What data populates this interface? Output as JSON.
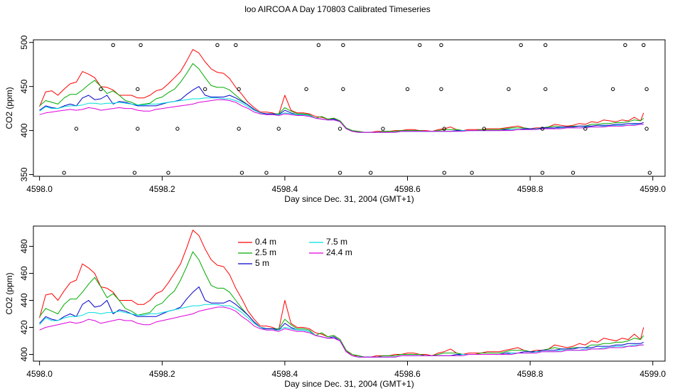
{
  "title": "loo AIRCOA A  Day 170803  Calibrated Timeseries",
  "chart_data": [
    {
      "type": "line",
      "xlabel": "Day since Dec. 31, 2004 (GMT+1)",
      "ylabel": "CO2 (ppm)",
      "xlim": [
        4597.99,
        4599.02
      ],
      "ylim": [
        348,
        503
      ],
      "xticks": [
        "4598.0",
        "4598.2",
        "4598.4",
        "4598.6",
        "4598.8",
        "4599.0"
      ],
      "yticks": [
        "350",
        "400",
        "450",
        "500"
      ],
      "series_ref": "profile",
      "markers": {
        "style": "open-circle",
        "points": [
          [
            4598.04,
            352
          ],
          [
            4598.06,
            402
          ],
          [
            4598.1,
            447
          ],
          [
            4598.12,
            497
          ],
          [
            4598.155,
            352
          ],
          [
            4598.16,
            402
          ],
          [
            4598.16,
            447
          ],
          [
            4598.165,
            497
          ],
          [
            4598.21,
            352
          ],
          [
            4598.225,
            402
          ],
          [
            4598.27,
            447
          ],
          [
            4598.29,
            497
          ],
          [
            4598.32,
            497
          ],
          [
            4598.325,
            447
          ],
          [
            4598.33,
            352
          ],
          [
            4598.325,
            402
          ],
          [
            4598.37,
            352
          ],
          [
            4598.39,
            402
          ],
          [
            4598.435,
            447
          ],
          [
            4598.455,
            497
          ],
          [
            4598.49,
            352
          ],
          [
            4598.49,
            402
          ],
          [
            4598.495,
            447
          ],
          [
            4598.495,
            497
          ],
          [
            4598.54,
            352
          ],
          [
            4598.56,
            402
          ],
          [
            4598.6,
            447
          ],
          [
            4598.62,
            497
          ],
          [
            4598.655,
            497
          ],
          [
            4598.655,
            447
          ],
          [
            4598.66,
            352
          ],
          [
            4598.66,
            402
          ],
          [
            4598.705,
            352
          ],
          [
            4598.725,
            402
          ],
          [
            4598.765,
            447
          ],
          [
            4598.785,
            497
          ],
          [
            4598.82,
            352
          ],
          [
            4598.82,
            402
          ],
          [
            4598.825,
            447
          ],
          [
            4598.825,
            497
          ],
          [
            4598.87,
            352
          ],
          [
            4598.89,
            402
          ],
          [
            4598.935,
            447
          ],
          [
            4598.955,
            497
          ],
          [
            4598.985,
            497
          ],
          [
            4598.99,
            447
          ],
          [
            4598.99,
            402
          ],
          [
            4598.995,
            352
          ]
        ]
      }
    },
    {
      "type": "line",
      "xlabel": "Day since Dec. 31, 2004 (GMT+1)",
      "ylabel": "CO2 (ppm)",
      "xlim": [
        4597.99,
        4599.02
      ],
      "ylim": [
        395,
        495
      ],
      "xticks": [
        "4598.0",
        "4598.2",
        "4598.4",
        "4598.6",
        "4598.8",
        "4599.0"
      ],
      "yticks": [
        "400",
        "420",
        "440",
        "460",
        "480"
      ],
      "series_ref": "profile",
      "legend": {
        "placement": "top-left",
        "entries": [
          {
            "name": "0.4 m",
            "color": "#ff0000"
          },
          {
            "name": "2.5 m",
            "color": "#00aa00"
          },
          {
            "name": "5 m",
            "color": "#0000cc"
          },
          {
            "name": "7.5 m",
            "color": "#00dddd"
          },
          {
            "name": "24.4 m",
            "color": "#dd00dd"
          }
        ]
      }
    }
  ],
  "profile": {
    "x": [
      4598.0,
      4598.01,
      4598.02,
      4598.03,
      4598.04,
      4598.05,
      4598.06,
      4598.07,
      4598.08,
      4598.09,
      4598.1,
      4598.11,
      4598.12,
      4598.13,
      4598.14,
      4598.15,
      4598.16,
      4598.17,
      4598.18,
      4598.19,
      4598.2,
      4598.21,
      4598.22,
      4598.23,
      4598.24,
      4598.25,
      4598.26,
      4598.27,
      4598.28,
      4598.29,
      4598.3,
      4598.31,
      4598.32,
      4598.33,
      4598.34,
      4598.35,
      4598.36,
      4598.37,
      4598.38,
      4598.39,
      4598.4,
      4598.41,
      4598.42,
      4598.43,
      4598.44,
      4598.45,
      4598.46,
      4598.47,
      4598.48,
      4598.49,
      4598.5,
      4598.51,
      4598.52,
      4598.53,
      4598.54,
      4598.55,
      4598.56,
      4598.57,
      4598.58,
      4598.59,
      4598.6,
      4598.61,
      4598.62,
      4598.63,
      4598.64,
      4598.65,
      4598.66,
      4598.67,
      4598.68,
      4598.69,
      4598.7,
      4598.71,
      4598.72,
      4598.73,
      4598.74,
      4598.75,
      4598.76,
      4598.77,
      4598.78,
      4598.79,
      4598.8,
      4598.81,
      4598.82,
      4598.83,
      4598.84,
      4598.85,
      4598.86,
      4598.87,
      4598.88,
      4598.89,
      4598.9,
      4598.91,
      4598.92,
      4598.93,
      4598.94,
      4598.95,
      4598.96,
      4598.97,
      4598.98,
      4598.985
    ],
    "series": [
      {
        "name": "0.4 m",
        "color": "#ff0000",
        "values": [
          427,
          444,
          445,
          440,
          447,
          453,
          455,
          467,
          464,
          460,
          450,
          449,
          446,
          440,
          440,
          440,
          437,
          437,
          440,
          445,
          447,
          453,
          460,
          467,
          479,
          492,
          488,
          478,
          470,
          466,
          465,
          459,
          449,
          441,
          432,
          426,
          421,
          421,
          420,
          418,
          440,
          423,
          420,
          420,
          419,
          416,
          415,
          413,
          414,
          411,
          403,
          399,
          399,
          398,
          398,
          399,
          399,
          399,
          400,
          400,
          401,
          401,
          400,
          400,
          399,
          401,
          402,
          404,
          401,
          400,
          401,
          401,
          401,
          402,
          402,
          402,
          403,
          404,
          405,
          403,
          402,
          403,
          403,
          404,
          407,
          406,
          405,
          406,
          408,
          407,
          410,
          409,
          412,
          411,
          410,
          412,
          411,
          415,
          411,
          420
        ]
      },
      {
        "name": "2.5 m",
        "color": "#00aa00",
        "values": [
          428,
          434,
          432,
          430,
          437,
          441,
          441,
          446,
          452,
          457,
          450,
          442,
          445,
          440,
          434,
          432,
          429,
          430,
          431,
          436,
          438,
          443,
          447,
          455,
          465,
          476,
          470,
          460,
          451,
          449,
          449,
          446,
          440,
          434,
          429,
          424,
          420,
          419,
          419,
          419,
          426,
          422,
          419,
          419,
          418,
          414,
          416,
          413,
          414,
          411,
          403,
          400,
          399,
          398,
          398,
          398,
          399,
          399,
          399,
          400,
          400,
          400,
          400,
          399,
          399,
          400,
          401,
          401,
          401,
          400,
          400,
          400,
          401,
          401,
          401,
          401,
          402,
          403,
          403,
          403,
          402,
          402,
          403,
          404,
          405,
          404,
          404,
          405,
          405,
          405,
          407,
          407,
          408,
          408,
          409,
          409,
          410,
          412,
          411,
          414
        ]
      },
      {
        "name": "5 m",
        "color": "#0000cc",
        "values": [
          423,
          428,
          426,
          425,
          428,
          430,
          428,
          437,
          440,
          435,
          436,
          440,
          430,
          433,
          432,
          430,
          428,
          428,
          428,
          428,
          430,
          432,
          433,
          435,
          441,
          446,
          450,
          440,
          438,
          438,
          438,
          440,
          437,
          433,
          429,
          424,
          420,
          419,
          419,
          418,
          423,
          420,
          418,
          418,
          417,
          414,
          413,
          412,
          413,
          410,
          402,
          399,
          398,
          398,
          398,
          398,
          398,
          398,
          398,
          399,
          399,
          399,
          399,
          399,
          399,
          399,
          399,
          399,
          400,
          400,
          400,
          400,
          400,
          400,
          400,
          400,
          401,
          401,
          401,
          402,
          402,
          402,
          403,
          403,
          403,
          404,
          404,
          404,
          405,
          405,
          405,
          406,
          406,
          406,
          407,
          407,
          408,
          408,
          408,
          409
        ]
      },
      {
        "name": "7.5 m",
        "color": "#00dddd",
        "values": [
          422,
          427,
          425,
          425,
          427,
          428,
          428,
          429,
          431,
          431,
          430,
          431,
          431,
          432,
          431,
          430,
          429,
          429,
          430,
          430,
          431,
          432,
          433,
          434,
          435,
          436,
          436,
          437,
          437,
          437,
          436,
          436,
          434,
          431,
          427,
          423,
          420,
          418,
          418,
          418,
          420,
          419,
          418,
          418,
          417,
          414,
          413,
          412,
          412,
          410,
          402,
          399,
          398,
          398,
          398,
          398,
          398,
          398,
          398,
          399,
          399,
          399,
          399,
          399,
          399,
          399,
          399,
          399,
          399,
          400,
          400,
          400,
          400,
          400,
          400,
          400,
          400,
          401,
          401,
          401,
          401,
          402,
          402,
          402,
          402,
          403,
          403,
          403,
          403,
          404,
          404,
          404,
          405,
          405,
          406,
          406,
          406,
          407,
          407,
          407
        ]
      },
      {
        "name": "24.4 m",
        "color": "#dd00dd",
        "values": [
          418,
          420,
          421,
          422,
          423,
          424,
          423,
          424,
          426,
          425,
          423,
          424,
          425,
          426,
          425,
          425,
          423,
          422,
          422,
          424,
          425,
          426,
          427,
          428,
          429,
          430,
          432,
          433,
          434,
          435,
          435,
          434,
          432,
          428,
          425,
          421,
          419,
          418,
          418,
          417,
          419,
          418,
          417,
          417,
          416,
          414,
          413,
          412,
          412,
          410,
          402,
          399,
          398,
          398,
          398,
          398,
          398,
          398,
          398,
          399,
          399,
          399,
          399,
          399,
          399,
          399,
          399,
          399,
          399,
          399,
          400,
          400,
          400,
          400,
          400,
          400,
          400,
          400,
          401,
          401,
          401,
          401,
          402,
          402,
          402,
          402,
          403,
          403,
          403,
          403,
          404,
          404,
          404,
          405,
          405,
          405,
          406,
          406,
          407,
          407
        ]
      }
    ]
  }
}
